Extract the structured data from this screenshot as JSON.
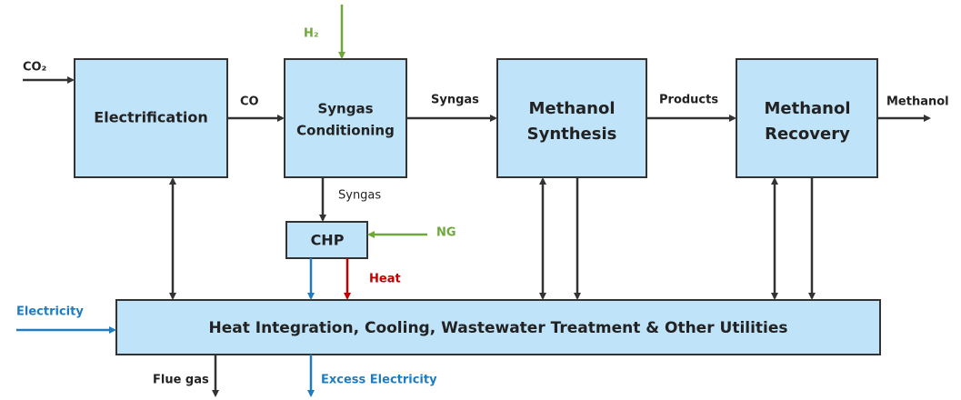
{
  "nodes": [
    {
      "label": [
        "Electrification"
      ]
    },
    {
      "label": [
        "Syngas",
        "Conditioning"
      ]
    },
    {
      "label": [
        "Methanol",
        "Synthesis"
      ]
    },
    {
      "label": [
        "Methanol",
        "Recovery"
      ]
    },
    {
      "label": [
        "CHP"
      ]
    },
    {
      "label": [
        "Heat Integration, Cooling, Wastewater Treatment & Other Utilities"
      ]
    }
  ],
  "flows": [
    "CO₂",
    "H₂",
    "CO",
    "Syngas",
    "Products",
    "Methanol",
    "Syngas",
    "NG",
    "Heat",
    "Electricity",
    "Flue gas",
    "Excess Electricity"
  ]
}
